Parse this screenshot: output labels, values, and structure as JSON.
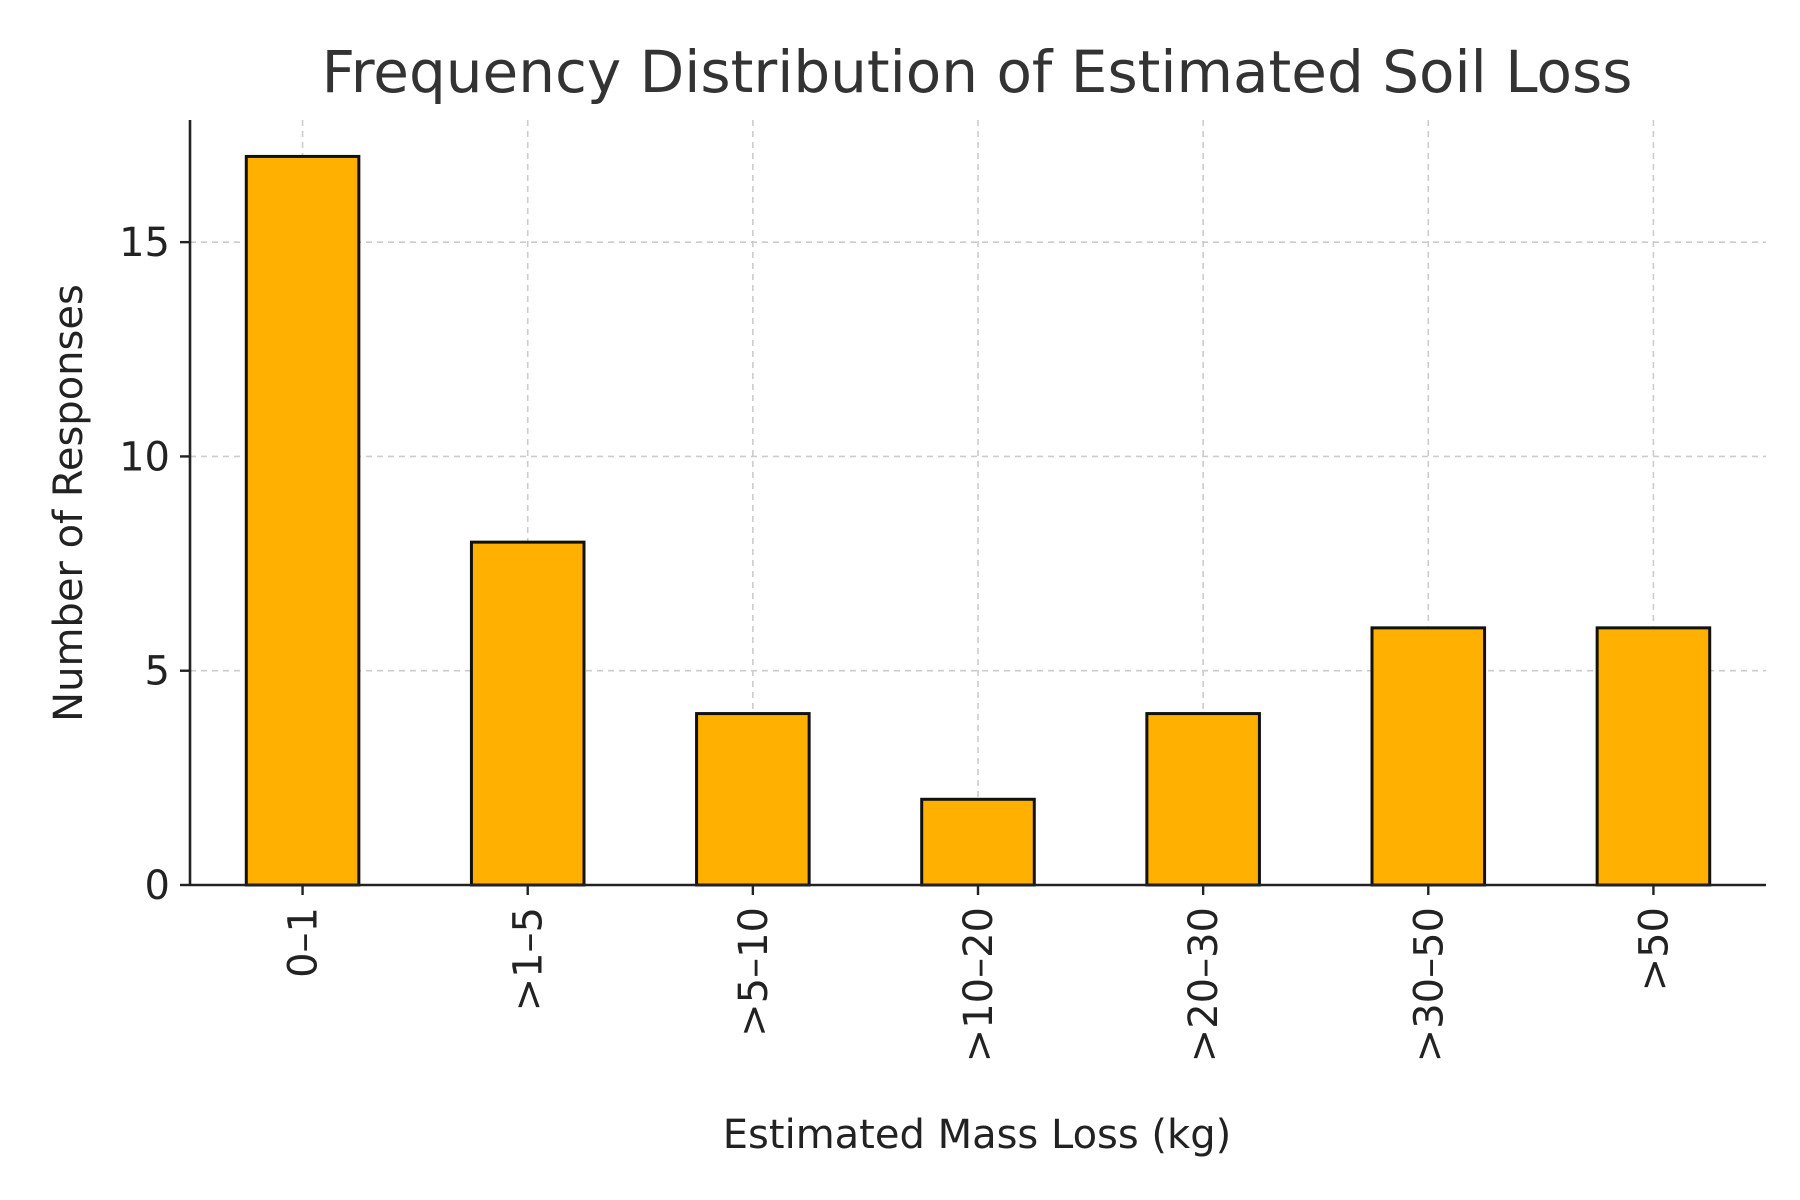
{
  "chart_data": {
    "type": "bar",
    "title": "Frequency Distribution of Estimated Soil Loss",
    "xlabel": "Estimated Mass Loss (kg)",
    "ylabel": "Number of Responses",
    "categories": [
      "0–1",
      ">1–5",
      ">5–10",
      ">10–20",
      ">20–30",
      ">30–50",
      ">50"
    ],
    "values": [
      17,
      8,
      4,
      2,
      4,
      6,
      6
    ],
    "ylim": [
      0,
      17.85
    ],
    "yticks": [
      0,
      5,
      10,
      15
    ],
    "grid": true,
    "x_tick_rotation": "vertical",
    "colors": {
      "bar_fill": "#FFB000",
      "bar_edge": "#111111",
      "grid": "#cccccc",
      "axis": "#222222",
      "title": "#333333"
    }
  }
}
